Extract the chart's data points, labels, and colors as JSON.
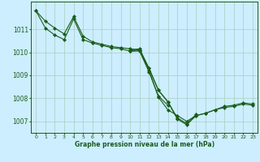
{
  "xlabel": "Graphe pression niveau de la mer (hPa)",
  "background_color": "#cceeff",
  "grid_color": "#aaccbb",
  "line_color": "#1a5c1a",
  "xlim": [
    -0.5,
    23.5
  ],
  "ylim": [
    1006.5,
    1012.2
  ],
  "yticks": [
    1007,
    1008,
    1009,
    1010,
    1011
  ],
  "xticks": [
    0,
    1,
    2,
    3,
    4,
    5,
    6,
    7,
    8,
    9,
    10,
    11,
    12,
    13,
    14,
    15,
    16,
    17,
    18,
    19,
    20,
    21,
    22,
    23
  ],
  "series": [
    [
      1011.8,
      1011.35,
      1011.05,
      1010.8,
      1011.55,
      1010.7,
      1010.45,
      1010.35,
      1010.25,
      1010.2,
      1010.15,
      1010.1,
      1009.3,
      1008.35,
      1007.85,
      1007.15,
      1006.9,
      1007.3,
      null,
      null,
      null,
      null,
      null,
      null
    ],
    [
      1011.8,
      1011.05,
      1010.75,
      1010.55,
      1011.45,
      1010.55,
      1010.4,
      1010.3,
      1010.2,
      1010.15,
      1010.05,
      1010.05,
      1009.15,
      1008.1,
      1007.7,
      null,
      null,
      null,
      null,
      null,
      null,
      null,
      null,
      null
    ],
    [
      null,
      null,
      null,
      null,
      null,
      null,
      null,
      null,
      null,
      null,
      1010.1,
      1010.15,
      1009.3,
      1008.35,
      1007.85,
      1007.1,
      1006.85,
      1007.25,
      1007.35,
      1007.5,
      1007.65,
      1007.7,
      1007.8,
      1007.75
    ],
    [
      null,
      null,
      null,
      null,
      null,
      null,
      null,
      null,
      null,
      null,
      1010.05,
      1010.1,
      1009.2,
      1008.05,
      1007.5,
      1007.25,
      1007.0,
      1007.25,
      1007.35,
      1007.5,
      1007.6,
      1007.65,
      1007.75,
      1007.7
    ]
  ]
}
